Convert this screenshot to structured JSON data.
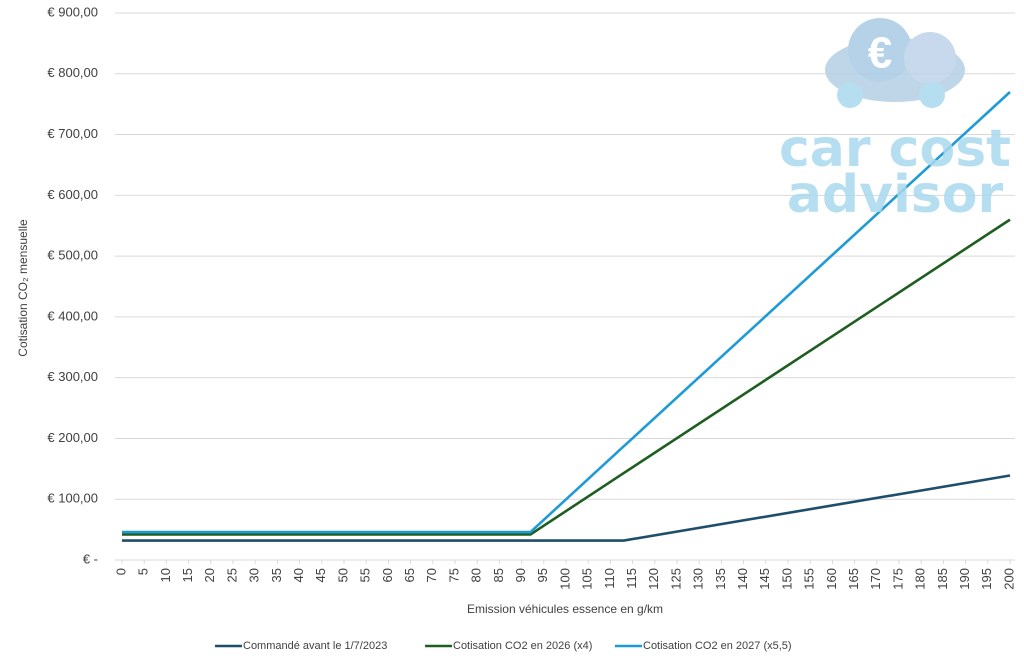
{
  "chart_data": {
    "type": "line",
    "x_label": "Emission véhicules essence en g/km",
    "y_label": "Cotisation CO₂ mensuelle",
    "x": [
      0,
      92,
      113,
      200
    ],
    "series": [
      {
        "name": "Commandé avant le 1/7/2023",
        "color": "#1f4e6b",
        "values": [
          32,
          32,
          32,
          139
        ]
      },
      {
        "name": "Cotisation CO2 en 2026 (x4)",
        "color": "#1e5e20",
        "values": [
          42,
          42,
          143,
          560
        ]
      },
      {
        "name": "Cotisation CO2 en 2027 (x5,5)",
        "color": "#1e9bd7",
        "values": [
          46,
          46,
          187,
          770
        ]
      }
    ],
    "xlim": [
      0,
      200
    ],
    "xticks": [
      0,
      5,
      10,
      15,
      20,
      25,
      30,
      35,
      40,
      45,
      50,
      55,
      60,
      65,
      70,
      75,
      80,
      85,
      90,
      95,
      100,
      105,
      110,
      115,
      120,
      125,
      130,
      135,
      140,
      145,
      150,
      155,
      160,
      165,
      170,
      175,
      180,
      185,
      190,
      195,
      200
    ],
    "ylim": [
      0,
      900
    ],
    "yticks": [
      {
        "value": 0,
        "label": "€ -"
      },
      {
        "value": 100,
        "label": "€ 100,00"
      },
      {
        "value": 200,
        "label": "€ 200,00"
      },
      {
        "value": 300,
        "label": "€ 300,00"
      },
      {
        "value": 400,
        "label": "€ 400,00"
      },
      {
        "value": 500,
        "label": "€ 500,00"
      },
      {
        "value": 600,
        "label": "€ 600,00"
      },
      {
        "value": 700,
        "label": "€ 700,00"
      },
      {
        "value": 800,
        "label": "€ 800,00"
      },
      {
        "value": 900,
        "label": "€ 900,00"
      }
    ],
    "grid": true,
    "legend": "bottom"
  },
  "logo": {
    "line1": "car cost",
    "line2": "advisor"
  }
}
